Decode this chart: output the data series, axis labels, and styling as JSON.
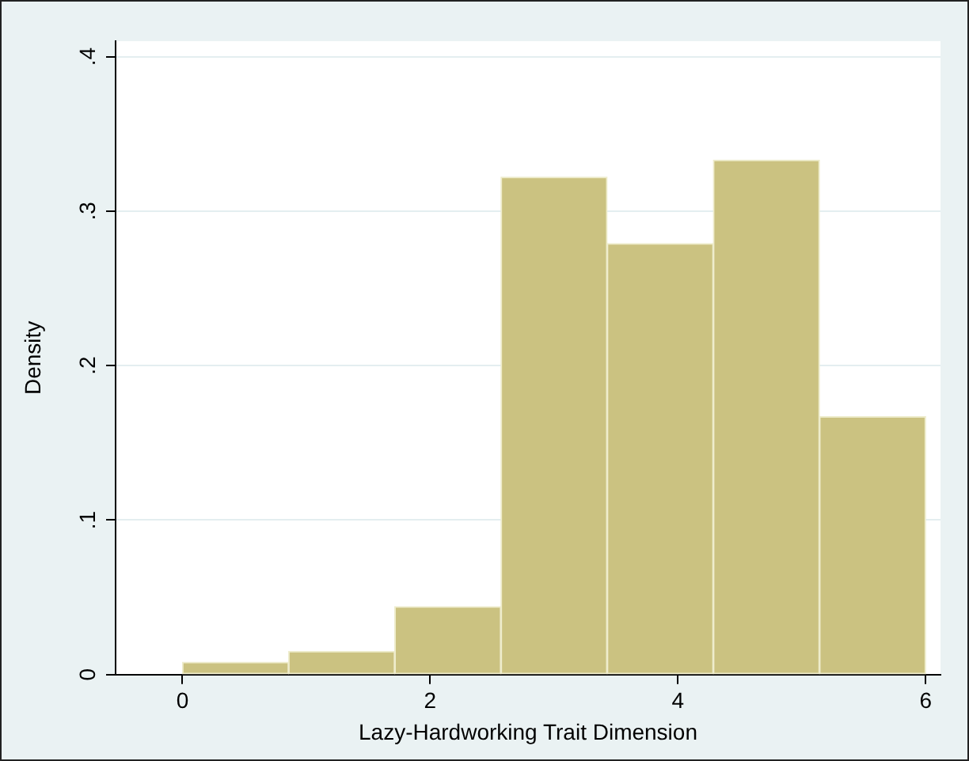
{
  "chart_data": {
    "type": "histogram",
    "xlabel": "Lazy-Hardworking Trait Dimension",
    "ylabel": "Density",
    "bins": [
      0,
      0.857,
      1.714,
      2.571,
      3.429,
      4.286,
      5.143,
      6
    ],
    "values": [
      0.008,
      0.015,
      0.044,
      0.322,
      0.279,
      0.333,
      0.167
    ],
    "color": "#cbc281",
    "xlim": [
      -0.54,
      6.12
    ],
    "xticks": [
      0,
      2,
      4,
      6
    ],
    "ylim": [
      0,
      0.41
    ],
    "yticks": [
      0,
      {
        "value": 0.1,
        "label": ".1"
      },
      {
        "value": 0.2,
        "label": ".2"
      },
      {
        "value": 0.3,
        "label": ".3"
      },
      {
        "value": 0.4,
        "label": ".4"
      }
    ],
    "grid": "y",
    "legend": false
  }
}
